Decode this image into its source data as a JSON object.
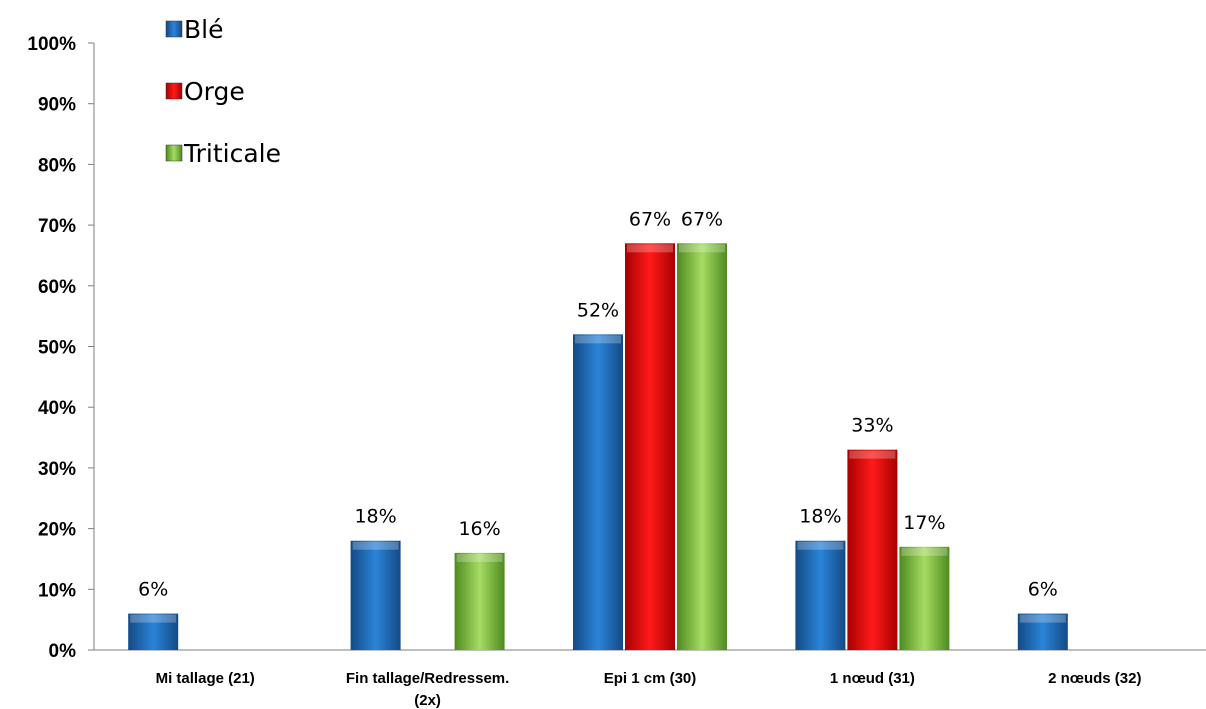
{
  "chart_data": {
    "type": "bar",
    "title": "",
    "xlabel": "",
    "ylabel": "",
    "ylim": [
      0,
      100
    ],
    "y_ticks": [
      "0%",
      "10%",
      "20%",
      "30%",
      "40%",
      "50%",
      "60%",
      "70%",
      "80%",
      "90%",
      "100%"
    ],
    "categories": [
      "Mi tallage (21)",
      "Fin tallage/Redressem. (2x)",
      "Epi 1 cm (30)",
      "1 nœud (31)",
      "2 nœuds (32)"
    ],
    "series": [
      {
        "name": "Blé",
        "color": "#1f6fc1",
        "values": [
          6,
          18,
          52,
          18,
          6
        ],
        "labels": [
          "6%",
          "18%",
          "52%",
          "18%",
          "6%"
        ]
      },
      {
        "name": "Orge",
        "color": "#ee0000",
        "values": [
          null,
          null,
          67,
          33,
          null
        ],
        "labels": [
          "",
          "",
          "67%",
          "33%",
          ""
        ]
      },
      {
        "name": "Triticale",
        "color": "#8fd14f",
        "values": [
          null,
          16,
          67,
          17,
          null
        ],
        "labels": [
          "",
          "16%",
          "67%",
          "17%",
          ""
        ]
      }
    ],
    "grid": false,
    "legend_position": "top-left"
  }
}
